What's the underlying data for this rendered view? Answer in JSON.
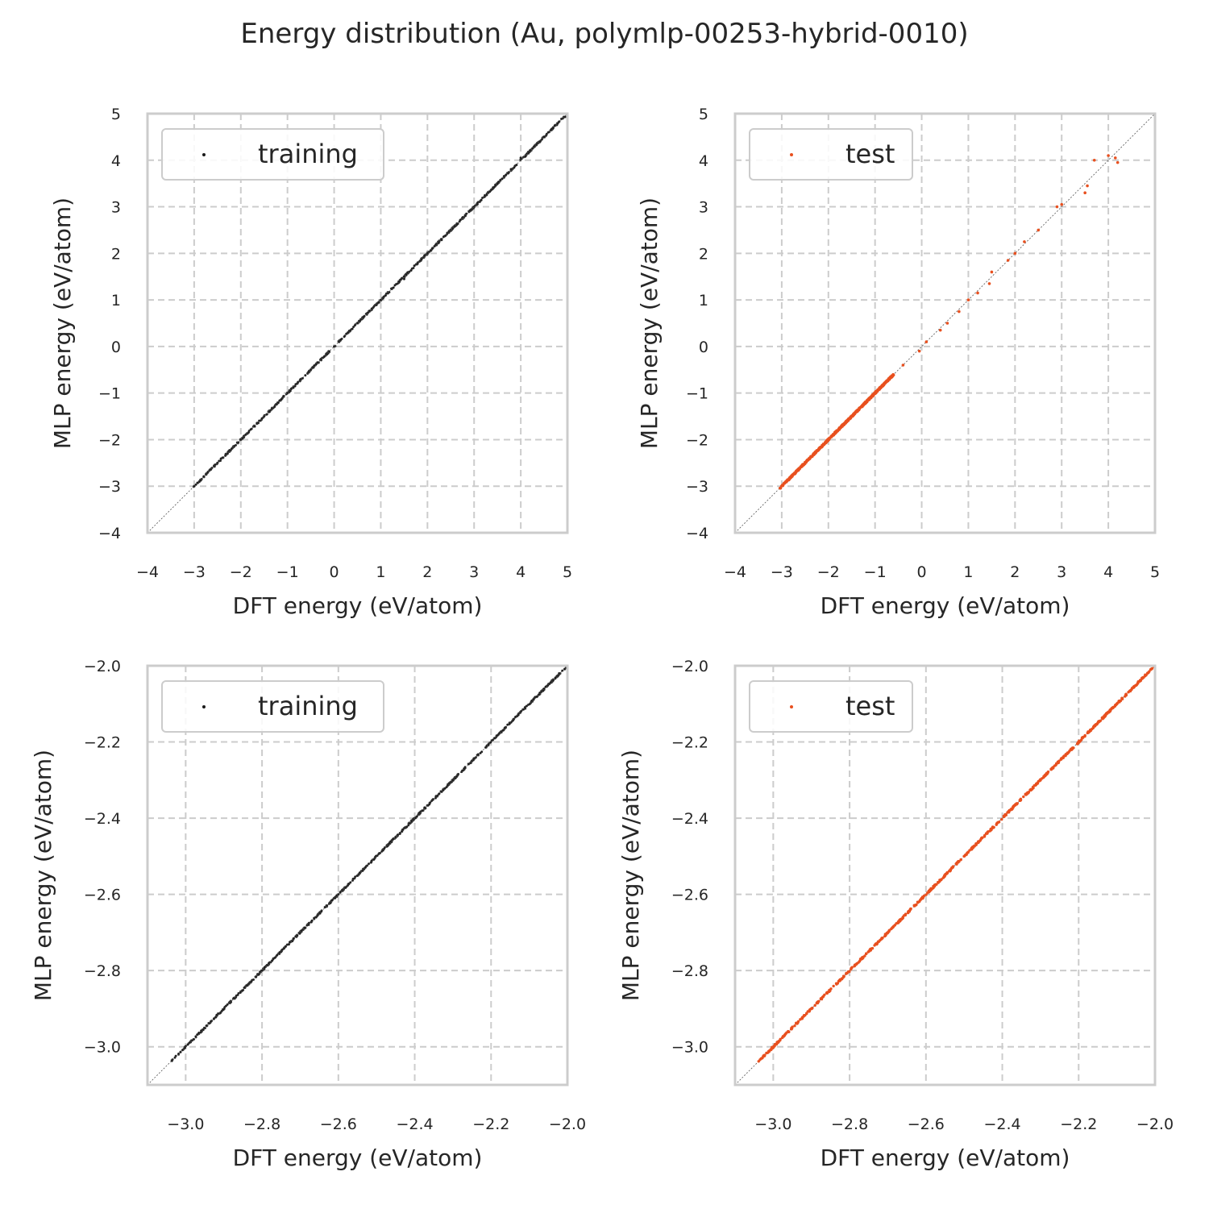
{
  "title": "Energy distribution (Au, polymlp-00253-hybrid-0010)",
  "colors": {
    "training": "#1a1a1a",
    "test": "#e8501f",
    "grid": "#cccccc",
    "frame": "#cccccc",
    "diagonal": "#555555"
  },
  "chart_data": [
    {
      "type": "scatter",
      "xlabel": "DFT energy (eV/atom)",
      "ylabel": "MLP energy (eV/atom)",
      "xlim": [
        -4,
        5
      ],
      "ylim": [
        -4,
        5
      ],
      "xticks": [
        -4,
        -3,
        -2,
        -1,
        0,
        1,
        2,
        3,
        4,
        5
      ],
      "xtick_labels": [
        "−4",
        "−3",
        "−2",
        "−1",
        "0",
        "1",
        "2",
        "3",
        "4",
        "5"
      ],
      "yticks": [
        -4,
        -3,
        -2,
        -1,
        0,
        1,
        2,
        3,
        4,
        5
      ],
      "ytick_labels": [
        "−4",
        "−3",
        "−2",
        "−1",
        "0",
        "1",
        "2",
        "3",
        "4",
        "5"
      ],
      "grid": true,
      "legend_position": "top-left",
      "diagonal": true,
      "series": [
        {
          "name": "training",
          "color": "#1a1a1a",
          "density": "continuous",
          "range": [
            -3.04,
            4.95
          ],
          "x": [
            -3.0,
            -2.5,
            -2.0,
            -1.5,
            -1.0,
            -0.5,
            0.0,
            0.5,
            1.0,
            1.5,
            2.0,
            2.5,
            3.0,
            3.3,
            3.6,
            4.0,
            4.5,
            4.95
          ],
          "y": [
            -3.0,
            -2.5,
            -2.0,
            -1.5,
            -1.0,
            -0.5,
            0.0,
            0.5,
            1.0,
            1.45,
            2.0,
            2.5,
            3.0,
            3.3,
            3.6,
            4.05,
            4.5,
            4.93
          ]
        }
      ]
    },
    {
      "type": "scatter",
      "xlabel": "DFT energy (eV/atom)",
      "ylabel": "MLP energy (eV/atom)",
      "xlim": [
        -4,
        5
      ],
      "ylim": [
        -4,
        5
      ],
      "xticks": [
        -4,
        -3,
        -2,
        -1,
        0,
        1,
        2,
        3,
        4,
        5
      ],
      "xtick_labels": [
        "−4",
        "−3",
        "−2",
        "−1",
        "0",
        "1",
        "2",
        "3",
        "4",
        "5"
      ],
      "yticks": [
        -4,
        -3,
        -2,
        -1,
        0,
        1,
        2,
        3,
        4,
        5
      ],
      "ytick_labels": [
        "−4",
        "−3",
        "−2",
        "−1",
        "0",
        "1",
        "2",
        "3",
        "4",
        "5"
      ],
      "grid": true,
      "legend_position": "top-left",
      "diagonal": true,
      "series": [
        {
          "name": "test",
          "color": "#e8501f",
          "density": "continuous",
          "range": [
            -3.04,
            -0.6
          ],
          "x": [
            -0.4,
            -0.05,
            0.1,
            0.4,
            0.55,
            0.8,
            1.0,
            1.2,
            1.45,
            1.5,
            1.85,
            2.0,
            2.2,
            2.5,
            2.9,
            3.0,
            3.5,
            3.55,
            3.7,
            4.0,
            4.15,
            4.2
          ],
          "y": [
            -0.4,
            -0.1,
            0.1,
            0.35,
            0.5,
            0.75,
            1.0,
            1.15,
            1.35,
            1.6,
            1.85,
            2.0,
            2.25,
            2.5,
            3.0,
            3.05,
            3.3,
            3.45,
            4.0,
            4.1,
            4.05,
            3.95
          ]
        }
      ]
    },
    {
      "type": "scatter",
      "xlabel": "DFT energy (eV/atom)",
      "ylabel": "MLP energy (eV/atom)",
      "xlim": [
        -3.1,
        -2.0
      ],
      "ylim": [
        -3.1,
        -2.0
      ],
      "xticks": [
        -3.0,
        -2.8,
        -2.6,
        -2.4,
        -2.2,
        -2.0
      ],
      "xtick_labels": [
        "−3.0",
        "−2.8",
        "−2.6",
        "−2.4",
        "−2.2",
        "−2.0"
      ],
      "yticks": [
        -3.0,
        -2.8,
        -2.6,
        -2.4,
        -2.2,
        -2.0
      ],
      "ytick_labels": [
        "−3.0",
        "−2.8",
        "−2.6",
        "−2.4",
        "−2.2",
        "−2.0"
      ],
      "grid": true,
      "legend_position": "top-left",
      "diagonal": true,
      "series": [
        {
          "name": "training",
          "color": "#1a1a1a",
          "density": "continuous",
          "range": [
            -3.04,
            -2.0
          ],
          "x": [
            -2.3,
            -2.25,
            -2.45,
            -2.6,
            -2.8
          ],
          "y": [
            -2.3,
            -2.25,
            -2.45,
            -2.6,
            -2.8
          ]
        }
      ]
    },
    {
      "type": "scatter",
      "xlabel": "DFT energy (eV/atom)",
      "ylabel": "MLP energy (eV/atom)",
      "xlim": [
        -3.1,
        -2.0
      ],
      "ylim": [
        -3.1,
        -2.0
      ],
      "xticks": [
        -3.0,
        -2.8,
        -2.6,
        -2.4,
        -2.2,
        -2.0
      ],
      "xtick_labels": [
        "−3.0",
        "−2.8",
        "−2.6",
        "−2.4",
        "−2.2",
        "−2.0"
      ],
      "yticks": [
        -3.0,
        -2.8,
        -2.6,
        -2.4,
        -2.2,
        -2.0
      ],
      "ytick_labels": [
        "−3.0",
        "−2.8",
        "−2.6",
        "−2.4",
        "−2.2",
        "−2.0"
      ],
      "grid": true,
      "legend_position": "top-left",
      "diagonal": true,
      "series": [
        {
          "name": "test",
          "color": "#e8501f",
          "density": "continuous",
          "range": [
            -3.04,
            -2.0
          ],
          "x": [
            -2.9,
            -2.7,
            -2.5,
            -2.3,
            -2.1
          ],
          "y": [
            -2.9,
            -2.7,
            -2.5,
            -2.3,
            -2.1
          ]
        }
      ]
    }
  ]
}
